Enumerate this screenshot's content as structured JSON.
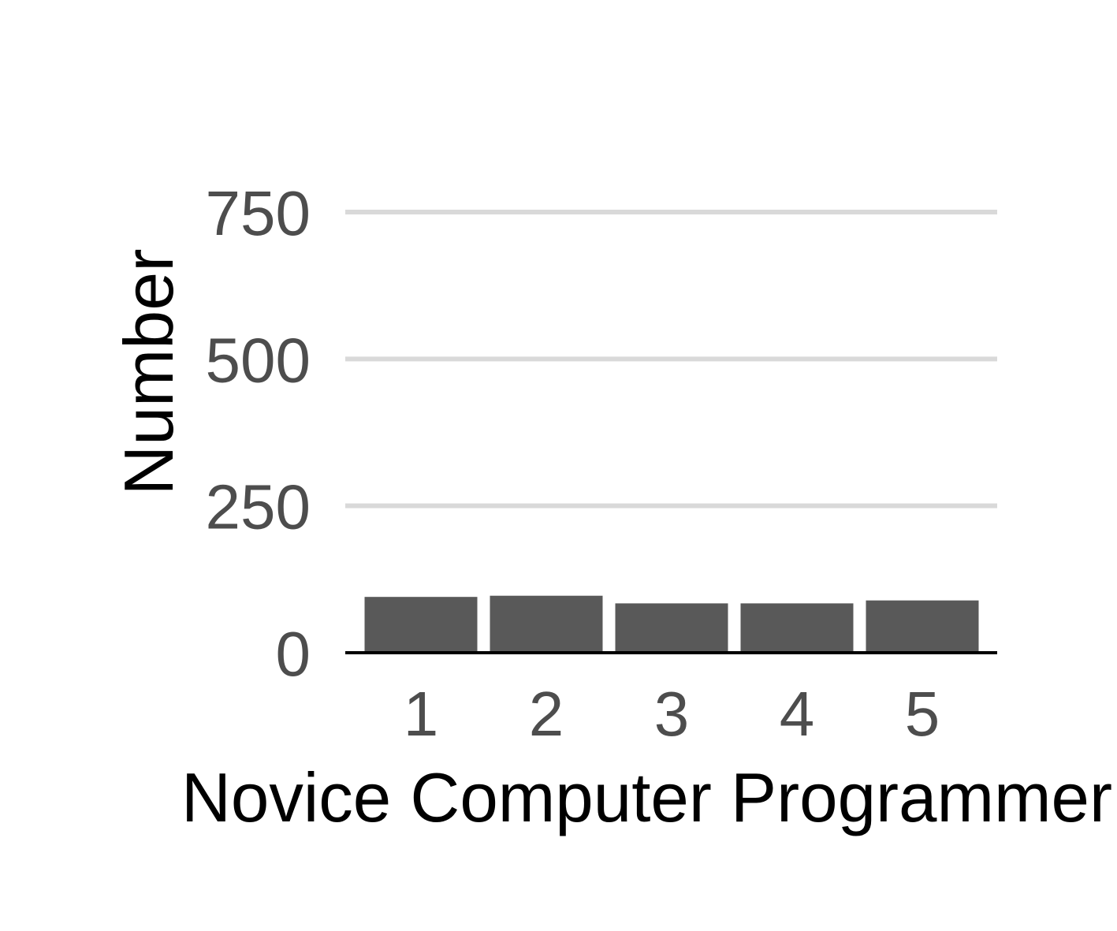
{
  "chart_data": {
    "type": "bar",
    "categories": [
      "1",
      "2",
      "3",
      "4",
      "5"
    ],
    "values": [
      95,
      97,
      84,
      84,
      89
    ],
    "title": "",
    "xlabel": "Novice Computer Programmer",
    "ylabel": "Number",
    "ylim": [
      0,
      750
    ],
    "yticks": [
      0,
      250,
      500,
      750
    ],
    "ytick_labels": [
      "0",
      "250",
      "500",
      "750"
    ],
    "grid": "horizontal major",
    "legend": "none",
    "colors": {
      "bar": "#595959",
      "grid": "#d9d9d9",
      "axis": "#000000",
      "tick_text": "#4d4d4d",
      "title_text": "#000000"
    }
  }
}
